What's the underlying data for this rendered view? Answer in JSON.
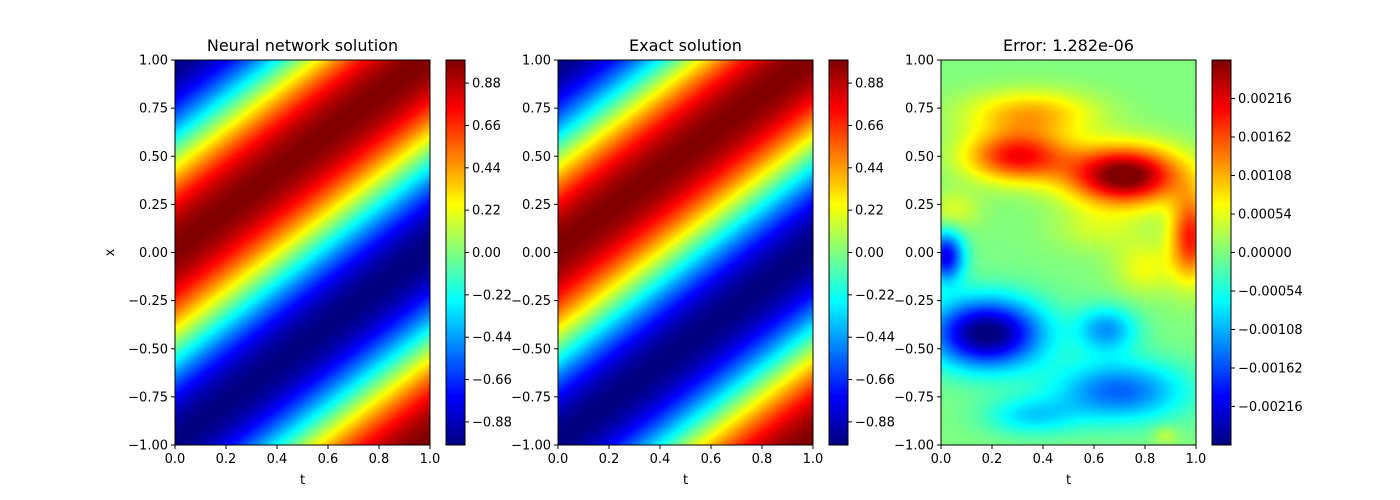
{
  "chart_data": [
    {
      "type": "heatmap",
      "title": "Neural network solution",
      "xlabel": "t",
      "ylabel": "x",
      "xlim": [
        0.0,
        1.0
      ],
      "ylim": [
        -1.0,
        1.0
      ],
      "x_ticks": [
        "0.0",
        "0.2",
        "0.4",
        "0.6",
        "0.8",
        "1.0"
      ],
      "y_ticks": [
        "1.00",
        "0.75",
        "0.50",
        "0.25",
        "0.00",
        "−0.25",
        "−0.50",
        "−0.75",
        "−1.00"
      ],
      "field": "traveling-wave",
      "colormap": "jet",
      "colorbar": {
        "range": [
          -1.0,
          1.0
        ],
        "ticks": [
          "0.88",
          "0.66",
          "0.44",
          "0.22",
          "0.00",
          "−0.22",
          "−0.44",
          "−0.66",
          "−0.88"
        ]
      }
    },
    {
      "type": "heatmap",
      "title": "Exact solution",
      "xlabel": "t",
      "ylabel": "",
      "xlim": [
        0.0,
        1.0
      ],
      "ylim": [
        -1.0,
        1.0
      ],
      "x_ticks": [
        "0.0",
        "0.2",
        "0.4",
        "0.6",
        "0.8",
        "1.0"
      ],
      "y_ticks": [
        "1.00",
        "0.75",
        "0.50",
        "0.25",
        "0.00",
        "−0.25",
        "−0.50",
        "−0.75",
        "−1.00"
      ],
      "field": "traveling-wave",
      "colormap": "jet",
      "colorbar": {
        "range": [
          -1.0,
          1.0
        ],
        "ticks": [
          "0.88",
          "0.66",
          "0.44",
          "0.22",
          "0.00",
          "−0.22",
          "−0.44",
          "−0.66",
          "−0.88"
        ]
      }
    },
    {
      "type": "heatmap",
      "title": "Error:  1.282e-06",
      "xlabel": "t",
      "ylabel": "",
      "xlim": [
        0.0,
        1.0
      ],
      "ylim": [
        -1.0,
        1.0
      ],
      "x_ticks": [
        "0.0",
        "0.2",
        "0.4",
        "0.6",
        "0.8",
        "1.0"
      ],
      "y_ticks": [
        "1.00",
        "0.75",
        "0.50",
        "0.25",
        "0.00",
        "−0.25",
        "−0.50",
        "−0.75",
        "−1.00"
      ],
      "field": "error-blobs",
      "colormap": "jet",
      "colorbar": {
        "range": [
          -0.0027,
          0.0027
        ],
        "ticks": [
          "0.00216",
          "0.00162",
          "0.00108",
          "0.00054",
          "0.00000",
          "−0.00054",
          "−0.00108",
          "−0.00162",
          "−0.00216"
        ]
      }
    }
  ]
}
